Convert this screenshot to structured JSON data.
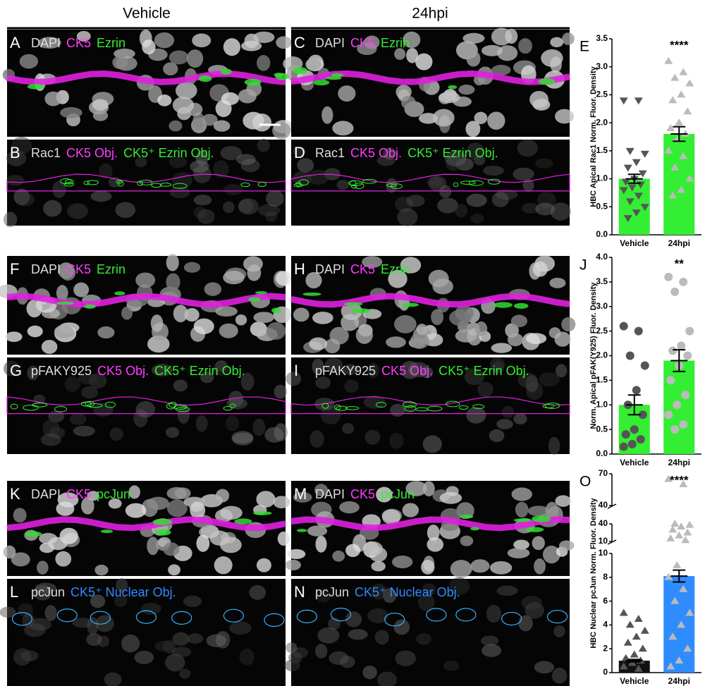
{
  "header": {
    "left": "Vehicle",
    "right": "24hpi"
  },
  "panels": [
    {
      "letter": "A",
      "labels": [
        {
          "text": "DAPI",
          "color": "#dddddd"
        },
        {
          "text": "CK5",
          "color": "#ff3cff"
        },
        {
          "text": "Ezrin",
          "color": "#33ee33"
        }
      ]
    },
    {
      "letter": "B",
      "labels": [
        {
          "text": "Rac1",
          "color": "#dddddd"
        },
        {
          "text": "CK5 Obj.",
          "color": "#ff3cff"
        },
        {
          "text": "CK5⁺ Ezrin Obj.",
          "color": "#33ee33"
        }
      ]
    },
    {
      "letter": "C",
      "labels": [
        {
          "text": "DAPI",
          "color": "#dddddd"
        },
        {
          "text": "CK5",
          "color": "#ff3cff"
        },
        {
          "text": "Ezrin",
          "color": "#33ee33"
        }
      ]
    },
    {
      "letter": "D",
      "labels": [
        {
          "text": "Rac1",
          "color": "#dddddd"
        },
        {
          "text": "CK5 Obj.",
          "color": "#ff3cff"
        },
        {
          "text": "CK5⁺ Ezrin Obj.",
          "color": "#33ee33"
        }
      ]
    },
    {
      "letter": "F",
      "labels": [
        {
          "text": "DAPI",
          "color": "#dddddd"
        },
        {
          "text": "CK5",
          "color": "#ff3cff"
        },
        {
          "text": "Ezrin",
          "color": "#33ee33"
        }
      ]
    },
    {
      "letter": "G",
      "labels": [
        {
          "text": "pFAKY925",
          "color": "#dddddd"
        },
        {
          "text": "CK5 Obj.",
          "color": "#ff3cff"
        },
        {
          "text": "CK5⁺ Ezrin Obj.",
          "color": "#33ee33"
        }
      ]
    },
    {
      "letter": "H",
      "labels": [
        {
          "text": "DAPI",
          "color": "#dddddd"
        },
        {
          "text": "CK5",
          "color": "#ff3cff"
        },
        {
          "text": "Ezrin",
          "color": "#33ee33"
        }
      ]
    },
    {
      "letter": "I",
      "labels": [
        {
          "text": "pFAKY925",
          "color": "#dddddd"
        },
        {
          "text": "CK5 Obj.",
          "color": "#ff3cff"
        },
        {
          "text": "CK5⁺ Ezrin Obj.",
          "color": "#33ee33"
        }
      ]
    },
    {
      "letter": "K",
      "labels": [
        {
          "text": "DAPI",
          "color": "#dddddd"
        },
        {
          "text": "CK5",
          "color": "#ff3cff"
        },
        {
          "text": "pcJun",
          "color": "#33ee33"
        }
      ]
    },
    {
      "letter": "L",
      "labels": [
        {
          "text": "pcJun",
          "color": "#dddddd"
        },
        {
          "text": "CK5⁺ Nuclear Obj.",
          "color": "#2f8cff"
        }
      ]
    },
    {
      "letter": "M",
      "labels": [
        {
          "text": "DAPI",
          "color": "#dddddd"
        },
        {
          "text": "CK5",
          "color": "#ff3cff"
        },
        {
          "text": "pcJun",
          "color": "#33ee33"
        }
      ]
    },
    {
      "letter": "N",
      "labels": [
        {
          "text": "pcJun",
          "color": "#dddddd"
        },
        {
          "text": "CK5⁺ Nuclear Obj.",
          "color": "#2f8cff"
        }
      ]
    }
  ],
  "chart_data": [
    {
      "type": "bar",
      "label": "E",
      "ylabel": "HBC Apical Rac1 Norm. Fluor. Density",
      "categories": [
        "Vehicle",
        "24hpi"
      ],
      "values": [
        1.0,
        1.8
      ],
      "errors": [
        0.08,
        0.13
      ],
      "colors": [
        "#33ee33",
        "#33ee33"
      ],
      "point_colors": [
        "#555555",
        "#bbbbbb"
      ],
      "markers": [
        "triangle-down",
        "triangle-up"
      ],
      "points": [
        [
          2.4,
          2.4,
          1.5,
          1.45,
          1.3,
          1.2,
          1.1,
          1.0,
          0.95,
          0.9,
          0.85,
          0.8,
          0.7,
          0.6,
          0.5,
          0.4,
          0.3
        ],
        [
          3.1,
          2.9,
          2.8,
          2.7,
          2.5,
          2.4,
          2.2,
          2.0,
          1.9,
          1.8,
          1.7,
          1.5,
          1.4,
          1.2,
          1.0,
          0.8,
          0.7
        ]
      ],
      "annotation": "****",
      "ylim": [
        0,
        3.5
      ],
      "yticks": [
        {
          "value": 0,
          "label": "0.0"
        },
        0.5,
        {
          "value": 1,
          "label": "1.0"
        },
        1.5,
        {
          "value": 2,
          "label": "2.0"
        },
        2.5,
        {
          "value": 3,
          "label": "3.0"
        },
        3.5
      ]
    },
    {
      "type": "bar",
      "label": "J",
      "ylabel": "Norm. Apical pFAK(Y925) Fluor. Density",
      "categories": [
        "Vehicle",
        "24hpi"
      ],
      "values": [
        1.0,
        1.9
      ],
      "errors": [
        0.2,
        0.22
      ],
      "colors": [
        "#33ee33",
        "#33ee33"
      ],
      "point_colors": [
        "#555555",
        "#bbbbbb"
      ],
      "markers": [
        "circle",
        "circle"
      ],
      "points": [
        [
          2.6,
          2.5,
          2.0,
          1.8,
          1.3,
          1.0,
          0.8,
          0.5,
          0.4,
          0.3,
          0.2,
          0.15
        ],
        [
          3.6,
          3.5,
          3.3,
          2.5,
          2.2,
          2.1,
          2.0,
          1.8,
          1.5,
          1.2,
          1.0,
          0.8,
          0.6,
          0.5
        ]
      ],
      "annotation": "**",
      "ylim": [
        0,
        4
      ],
      "yticks": [
        {
          "value": 0,
          "label": "0.0"
        },
        0.5,
        {
          "value": 1,
          "label": "1.0"
        },
        1.5,
        {
          "value": 2,
          "label": "2.0"
        },
        2.5,
        {
          "value": 3,
          "label": "3.0"
        },
        3.5,
        {
          "value": 4,
          "label": "4.0"
        }
      ]
    },
    {
      "type": "broken-bar",
      "label": "O",
      "ylabel": "HBC Nuclear pcJun Norm. Fluor. Density",
      "categories": [
        "Vehicle",
        "24hpi"
      ],
      "values": [
        1.0,
        8.1
      ],
      "errors": [
        0.1,
        0.5
      ],
      "colors": [
        "#111111",
        "#2f8cff"
      ],
      "point_colors": [
        "#555555",
        "#bbbbbb"
      ],
      "markers": [
        "triangle-up",
        "triangle-up"
      ],
      "points": [
        [
          5,
          4.5,
          4,
          3.5,
          3,
          2.5,
          2,
          1.5,
          1.2,
          1,
          0.8,
          0.5,
          0.3
        ],
        [
          65,
          60,
          40,
          38,
          35,
          30,
          25,
          20,
          15,
          12,
          9,
          8,
          7,
          6,
          5,
          4,
          3,
          2,
          1,
          0.5
        ]
      ],
      "annotation": "****",
      "y_segments": [
        {
          "ylim": [
            0,
            10
          ],
          "yticks": [
            0,
            2,
            4,
            6,
            8,
            10
          ]
        },
        {
          "ylim": [
            10,
            40
          ],
          "yticks": [
            10,
            40
          ]
        },
        {
          "ylim": [
            40,
            70
          ],
          "yticks": [
            40,
            70
          ]
        }
      ]
    }
  ]
}
